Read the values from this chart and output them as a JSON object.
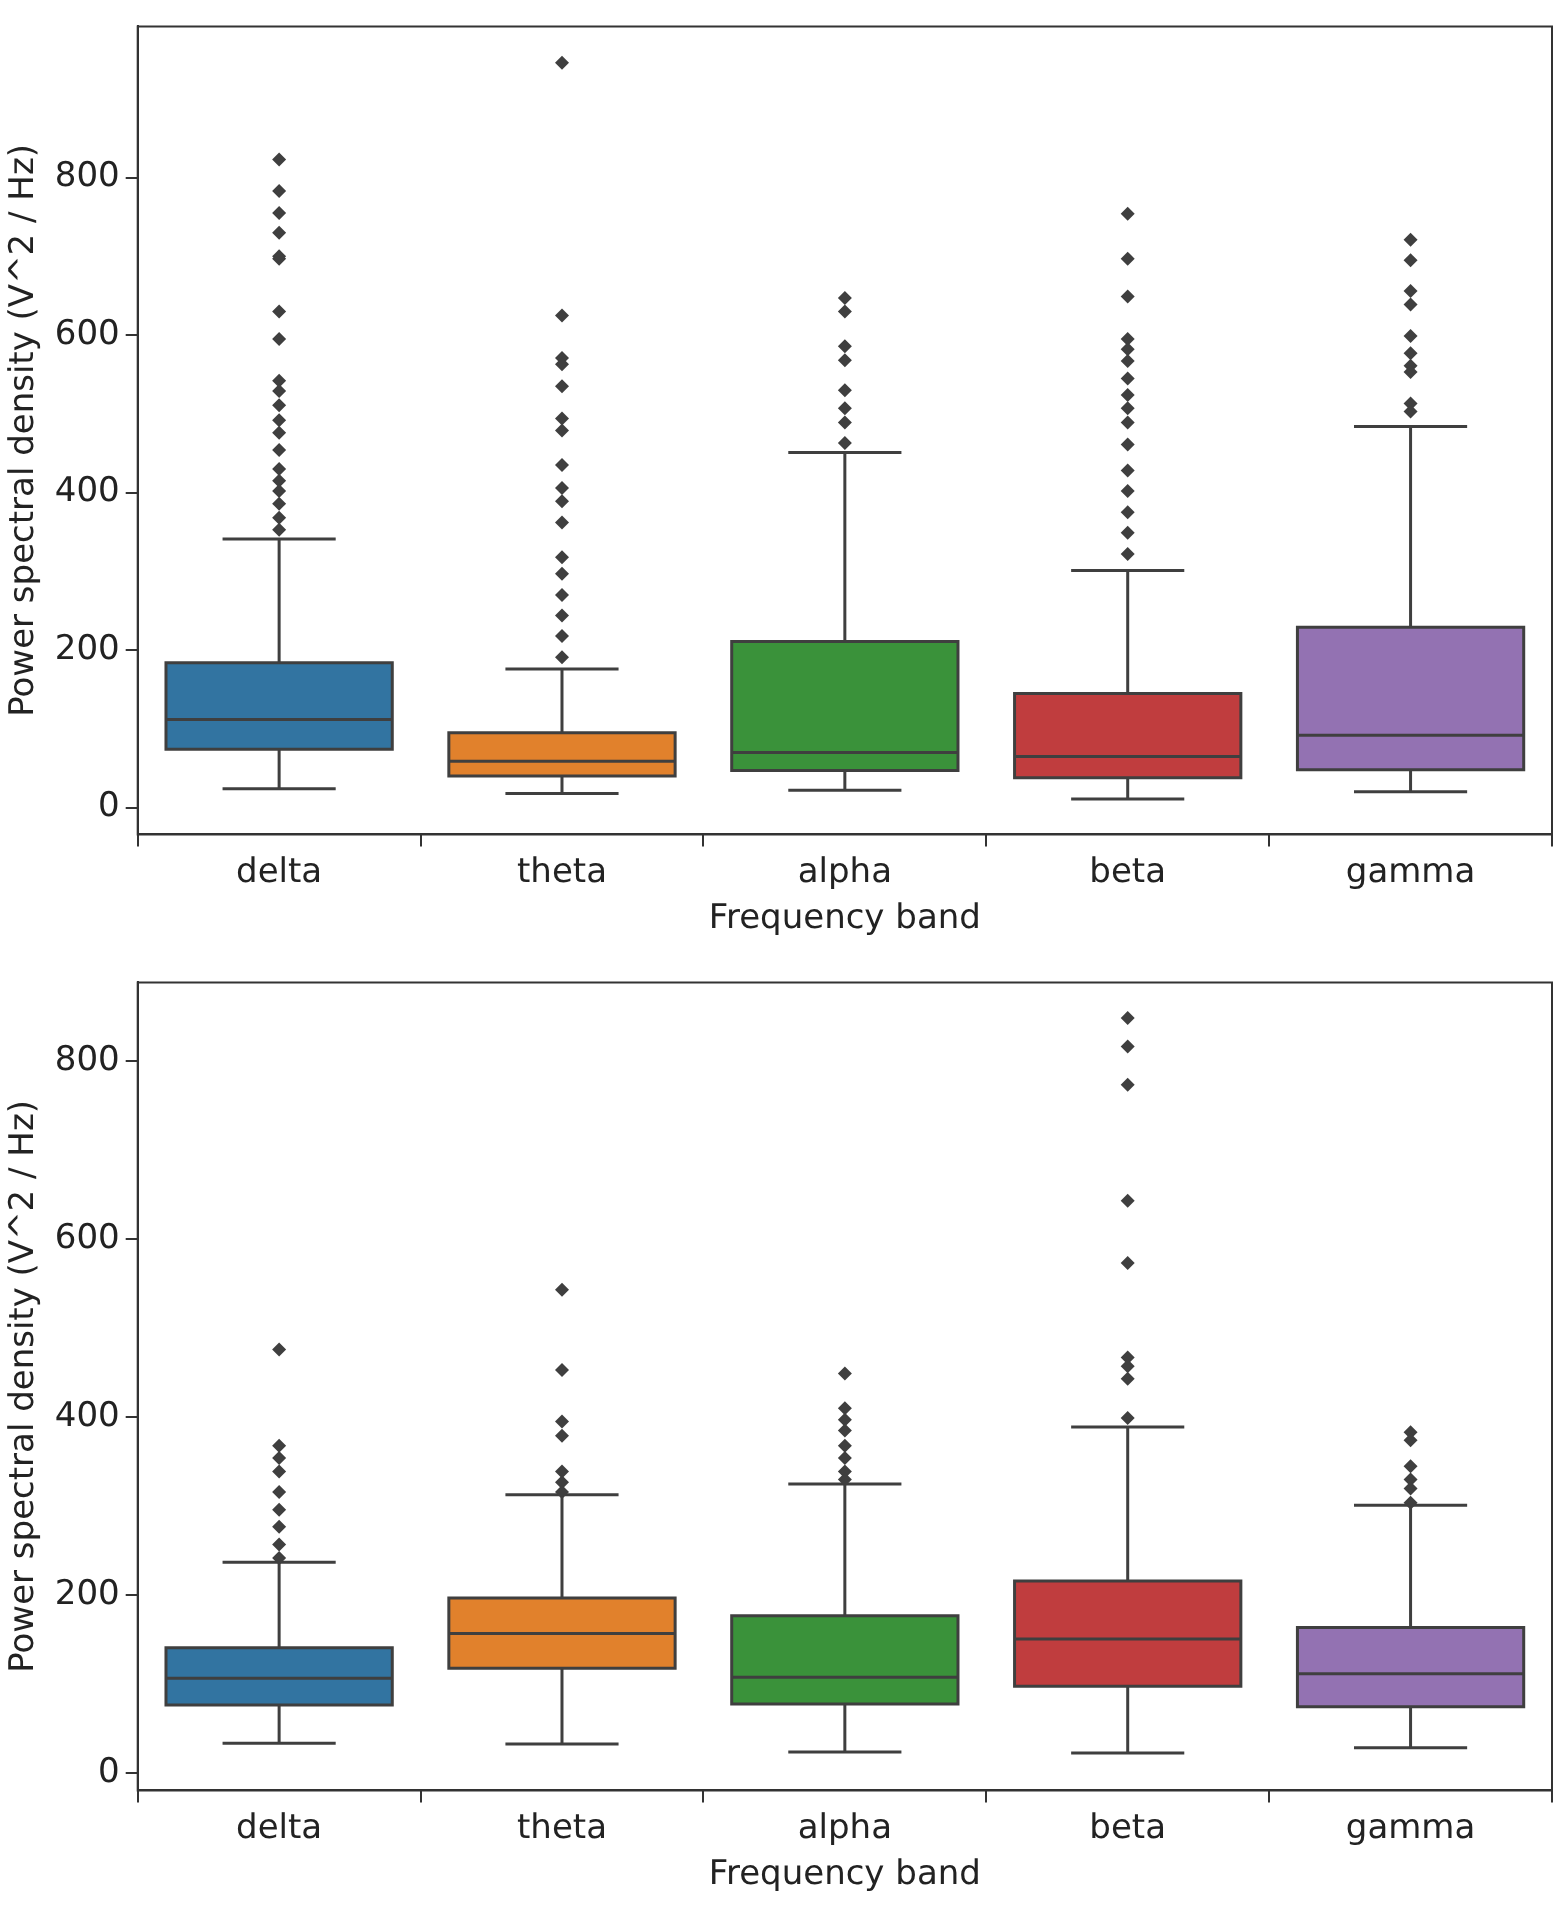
{
  "chart_data": [
    {
      "type": "box",
      "xlabel": "Frequency band",
      "ylabel": "Power spectral density (V^2 / Hz)",
      "categories": [
        "delta",
        "theta",
        "alpha",
        "beta",
        "gamma"
      ],
      "colors": [
        "#3274a1",
        "#e1812c",
        "#3a923a",
        "#c03d3e",
        "#9372b2"
      ],
      "ylim": [
        -34,
        992
      ],
      "yticks": [
        0,
        200,
        400,
        600,
        800
      ],
      "marker": "diamond",
      "boxes": [
        {
          "low": 24,
          "q1": 74,
          "median": 112,
          "q3": 184,
          "high": 341,
          "outliers": [
            823,
            783,
            755,
            730,
            700,
            697,
            630,
            595,
            542,
            529,
            511,
            492,
            476,
            454,
            430,
            415,
            402,
            386,
            368,
            353
          ]
        },
        {
          "low": 18,
          "q1": 40,
          "median": 59,
          "q3": 95,
          "high": 176,
          "outliers": [
            946,
            625,
            571,
            563,
            535,
            494,
            479,
            435,
            406,
            389,
            362,
            318,
            297,
            270,
            244,
            218,
            191
          ]
        },
        {
          "low": 22,
          "q1": 47,
          "median": 70,
          "q3": 211,
          "high": 451,
          "outliers": [
            647,
            630,
            586,
            568,
            530,
            507,
            489,
            463
          ]
        },
        {
          "low": 11,
          "q1": 38,
          "median": 65,
          "q3": 145,
          "high": 301,
          "outliers": [
            754,
            697,
            649,
            595,
            582,
            567,
            545,
            524,
            507,
            489,
            461,
            428,
            402,
            375,
            349,
            322
          ]
        },
        {
          "low": 20,
          "q1": 48,
          "median": 92,
          "q3": 229,
          "high": 484,
          "outliers": [
            721,
            695,
            656,
            639,
            599,
            577,
            561,
            553,
            513,
            503
          ]
        }
      ]
    },
    {
      "type": "box",
      "xlabel": "Frequency band",
      "ylabel": "Power spectral density (V^2 / Hz)",
      "categories": [
        "delta",
        "theta",
        "alpha",
        "beta",
        "gamma"
      ],
      "colors": [
        "#3274a1",
        "#e1812c",
        "#3a923a",
        "#c03d3e",
        "#9372b2"
      ],
      "ylim": [
        -19,
        888
      ],
      "yticks": [
        0,
        200,
        400,
        600,
        800
      ],
      "marker": "diamond",
      "boxes": [
        {
          "low": 34,
          "q1": 77,
          "median": 107,
          "q3": 141,
          "high": 237,
          "outliers": [
            476,
            368,
            354,
            339,
            316,
            296,
            277,
            257,
            242
          ]
        },
        {
          "low": 33,
          "q1": 118,
          "median": 157,
          "q3": 197,
          "high": 313,
          "outliers": [
            543,
            453,
            395,
            379,
            339,
            327,
            316
          ]
        },
        {
          "low": 24,
          "q1": 78,
          "median": 108,
          "q3": 177,
          "high": 325,
          "outliers": [
            449,
            410,
            397,
            385,
            368,
            354,
            339,
            330
          ]
        },
        {
          "low": 23,
          "q1": 98,
          "median": 151,
          "q3": 216,
          "high": 389,
          "outliers": [
            848,
            816,
            773,
            643,
            573,
            467,
            457,
            443,
            399
          ]
        },
        {
          "low": 29,
          "q1": 75,
          "median": 112,
          "q3": 164,
          "high": 301,
          "outliers": [
            383,
            374,
            345,
            330,
            320,
            304
          ]
        }
      ]
    }
  ]
}
